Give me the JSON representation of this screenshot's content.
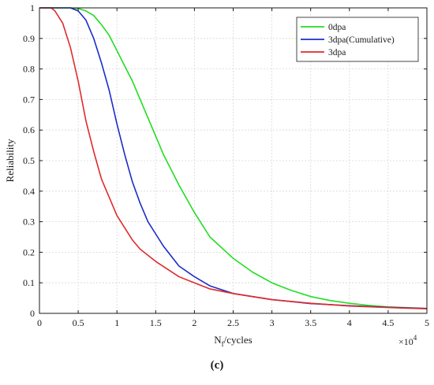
{
  "panel_label": "(c)",
  "chart_data": {
    "type": "line",
    "title": "",
    "xlabel": {
      "base": "N",
      "subscript": "f",
      "rest": "/cycles"
    },
    "ylabel": "Reliability",
    "x_multiplier": {
      "base": "×10",
      "exponent": "4"
    },
    "xlim": [
      0,
      5
    ],
    "ylim": [
      0,
      1
    ],
    "xticks": [
      "0",
      "0.5",
      "1",
      "1.5",
      "2",
      "2.5",
      "3",
      "3.5",
      "4",
      "4.5",
      "5"
    ],
    "yticks": [
      "0",
      "0.1",
      "0.2",
      "0.3",
      "0.4",
      "0.5",
      "0.6",
      "0.7",
      "0.8",
      "0.9",
      "1"
    ],
    "grid": true,
    "legend_position": "top-right",
    "series": [
      {
        "name": "0dpa",
        "color": "#22dd22",
        "x": [
          0,
          0.4,
          0.5,
          0.6,
          0.7,
          0.8,
          0.9,
          1.0,
          1.1,
          1.2,
          1.3,
          1.4,
          1.5,
          1.6,
          1.8,
          2.0,
          2.2,
          2.5,
          2.75,
          3.0,
          3.25,
          3.5,
          3.75,
          4.0,
          4.25,
          4.5,
          5.0
        ],
        "y": [
          1.0,
          1.0,
          0.998,
          0.99,
          0.975,
          0.945,
          0.91,
          0.86,
          0.81,
          0.76,
          0.7,
          0.64,
          0.58,
          0.52,
          0.42,
          0.33,
          0.25,
          0.18,
          0.135,
          0.1,
          0.075,
          0.055,
          0.042,
          0.033,
          0.026,
          0.021,
          0.016
        ]
      },
      {
        "name": "3dpa(Cumulative)",
        "color": "#1b2dc8",
        "x": [
          0,
          0.4,
          0.5,
          0.6,
          0.7,
          0.8,
          0.9,
          1.0,
          1.1,
          1.2,
          1.3,
          1.4,
          1.5,
          1.6,
          1.8,
          2.0,
          2.2,
          2.5,
          2.75,
          3.0,
          3.5,
          4.0,
          4.5,
          5.0
        ],
        "y": [
          1.0,
          1.0,
          0.99,
          0.96,
          0.9,
          0.82,
          0.73,
          0.62,
          0.52,
          0.43,
          0.36,
          0.3,
          0.26,
          0.22,
          0.155,
          0.12,
          0.09,
          0.065,
          0.055,
          0.045,
          0.032,
          0.025,
          0.02,
          0.016
        ]
      },
      {
        "name": "3dpa",
        "color": "#e02a2a",
        "x": [
          0,
          0.15,
          0.2,
          0.3,
          0.4,
          0.5,
          0.6,
          0.7,
          0.8,
          0.9,
          1.0,
          1.1,
          1.2,
          1.3,
          1.5,
          1.8,
          2.0,
          2.2,
          2.5,
          3.0,
          3.5,
          4.0,
          4.5,
          5.0
        ],
        "y": [
          1.0,
          1.0,
          0.99,
          0.95,
          0.87,
          0.76,
          0.63,
          0.53,
          0.44,
          0.38,
          0.32,
          0.28,
          0.24,
          0.21,
          0.17,
          0.12,
          0.1,
          0.08,
          0.065,
          0.045,
          0.033,
          0.024,
          0.019,
          0.015
        ]
      }
    ]
  }
}
